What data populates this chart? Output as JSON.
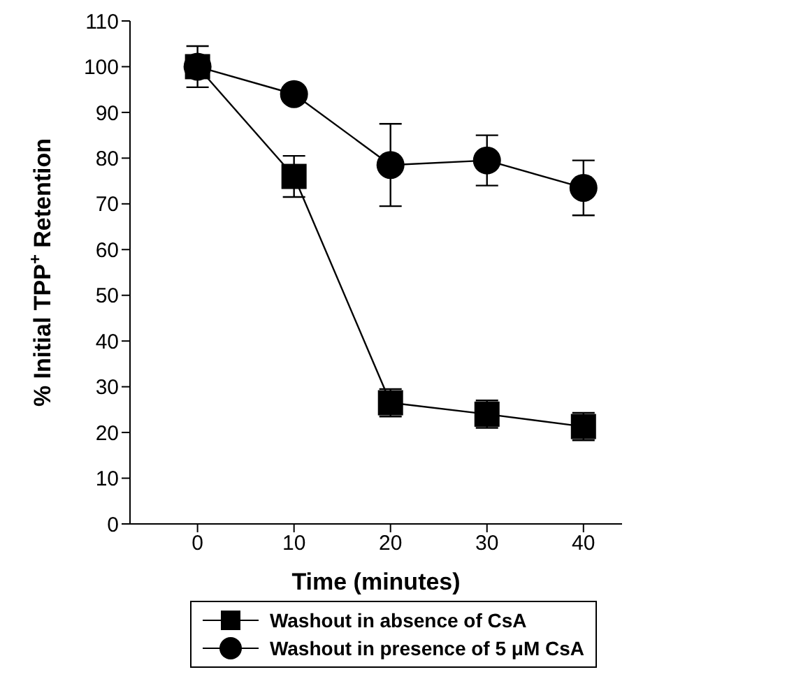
{
  "chart_data": {
    "type": "line",
    "xlabel": "Time (minutes)",
    "ylabel": "% Initial TPP$^{+}$ Retention",
    "x": [
      0,
      10,
      20,
      30,
      40
    ],
    "xlim": [
      -7,
      44
    ],
    "xticks": [
      0,
      10,
      20,
      30,
      40
    ],
    "ylim": [
      0,
      110
    ],
    "yticks": [
      0,
      10,
      20,
      30,
      40,
      50,
      60,
      70,
      80,
      90,
      100,
      110
    ],
    "grid": false,
    "legend": "bottom",
    "series": [
      {
        "name": "Washout in absence of CsA",
        "color": "#000000",
        "marker": "square",
        "values": [
          100,
          76,
          26.5,
          24,
          21.3
        ],
        "errors": [
          null,
          4.5,
          3,
          3,
          3
        ]
      },
      {
        "name": "Washout in presence of 5 μM CsA",
        "color": "#000000",
        "marker": "circle",
        "values": [
          100,
          94,
          78.5,
          79.5,
          73.5
        ],
        "errors": [
          4.5,
          null,
          9,
          5.5,
          6
        ]
      }
    ]
  }
}
